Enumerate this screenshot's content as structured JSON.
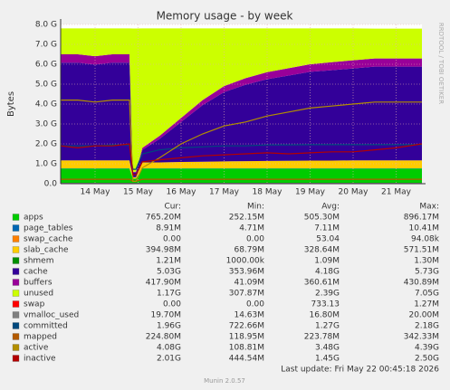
{
  "chart_data": {
    "type": "area",
    "title": "Memory usage - by week",
    "y_label": "Bytes",
    "side_text": "RRDTOOL / TOBI OETIKER",
    "x": [
      13.2,
      13.6,
      14,
      14.4,
      14.8,
      14.88,
      14.95,
      15.1,
      15.5,
      16,
      16.5,
      17,
      17.5,
      18,
      18.5,
      19,
      19.5,
      20,
      20.5,
      21,
      21.6
    ],
    "xlim": [
      13.2,
      21.6
    ],
    "xticks": [
      {
        "value": 14,
        "label": "14 May"
      },
      {
        "value": 15,
        "label": "15 May"
      },
      {
        "value": 16,
        "label": "16 May"
      },
      {
        "value": 17,
        "label": "17 May"
      },
      {
        "value": 18,
        "label": "18 May"
      },
      {
        "value": 19,
        "label": "19 May"
      },
      {
        "value": 20,
        "label": "20 May"
      },
      {
        "value": 21,
        "label": "21 May"
      }
    ],
    "ylim": [
      0,
      8
    ],
    "yticks": [
      {
        "value": 0,
        "label": "0.0"
      },
      {
        "value": 1,
        "label": "1.0 G"
      },
      {
        "value": 2,
        "label": "2.0 G"
      },
      {
        "value": 3,
        "label": "3.0 G"
      },
      {
        "value": 4,
        "label": "4.0 G"
      },
      {
        "value": 5,
        "label": "5.0 G"
      },
      {
        "value": 6,
        "label": "6.0 G"
      },
      {
        "value": 7,
        "label": "7.0 G"
      },
      {
        "value": 8,
        "label": "8.0 G"
      }
    ],
    "grid": true,
    "stat_headers": [
      "Cur:",
      "Min:",
      "Avg:",
      "Max:"
    ],
    "series": [
      {
        "name": "apps",
        "color": "#00cc00",
        "draw": "area",
        "values": [
          0.76,
          0.76,
          0.76,
          0.76,
          0.76,
          0.25,
          0.25,
          0.76,
          0.76,
          0.76,
          0.76,
          0.76,
          0.76,
          0.76,
          0.76,
          0.76,
          0.76,
          0.76,
          0.76,
          0.76,
          0.76
        ],
        "stats": [
          "765.20M",
          "252.15M",
          "505.30M",
          "896.17M"
        ]
      },
      {
        "name": "page_tables",
        "color": "#0066b3",
        "draw": "area",
        "values": [
          0.01,
          0.01,
          0.01,
          0.01,
          0.01,
          0.005,
          0.005,
          0.01,
          0.01,
          0.01,
          0.01,
          0.01,
          0.01,
          0.01,
          0.01,
          0.01,
          0.01,
          0.01,
          0.01,
          0.01,
          0.01
        ],
        "stats": [
          "8.91M",
          "4.71M",
          "7.11M",
          "10.41M"
        ]
      },
      {
        "name": "swap_cache",
        "color": "#ff8000",
        "draw": "area",
        "values": [
          0,
          0,
          0,
          0,
          0,
          0,
          0,
          0,
          0,
          0,
          0,
          0,
          0,
          0,
          0,
          0,
          0,
          0,
          0,
          0,
          0
        ],
        "stats": [
          "0.00",
          "0.00",
          "53.04",
          "94.08k"
        ]
      },
      {
        "name": "slab_cache",
        "color": "#ffcc00",
        "draw": "area",
        "values": [
          0.4,
          0.4,
          0.4,
          0.4,
          0.4,
          0.07,
          0.07,
          0.3,
          0.3,
          0.32,
          0.33,
          0.35,
          0.36,
          0.37,
          0.38,
          0.39,
          0.39,
          0.4,
          0.4,
          0.4,
          0.4
        ],
        "stats": [
          "394.98M",
          "68.79M",
          "328.64M",
          "571.51M"
        ]
      },
      {
        "name": "shmem",
        "color": "#008f00",
        "draw": "area",
        "values": [
          0.001,
          0.001,
          0.001,
          0.001,
          0.001,
          0.001,
          0.001,
          0.001,
          0.001,
          0.001,
          0.001,
          0.001,
          0.001,
          0.001,
          0.001,
          0.001,
          0.001,
          0.001,
          0.001,
          0.001,
          0.001
        ],
        "stats": [
          "1.21M",
          "1000.00k",
          "1.09M",
          "1.30M"
        ]
      },
      {
        "name": "cache",
        "color": "#330099",
        "draw": "area",
        "values": [
          4.91,
          4.91,
          4.81,
          4.91,
          4.91,
          0.23,
          0.23,
          0.63,
          1.18,
          2.01,
          2.85,
          3.48,
          3.84,
          4.11,
          4.28,
          4.46,
          4.54,
          4.62,
          4.71,
          4.71,
          4.71
        ],
        "stats": [
          "5.03G",
          "353.96M",
          "4.18G",
          "5.73G"
        ]
      },
      {
        "name": "buffers",
        "color": "#990099",
        "draw": "area",
        "values": [
          0.42,
          0.42,
          0.42,
          0.42,
          0.42,
          0.04,
          0.04,
          0.1,
          0.15,
          0.2,
          0.25,
          0.3,
          0.33,
          0.35,
          0.37,
          0.38,
          0.4,
          0.41,
          0.41,
          0.41,
          0.41
        ],
        "stats": [
          "417.90M",
          "41.09M",
          "360.61M",
          "430.89M"
        ]
      },
      {
        "name": "unused",
        "color": "#ccff00",
        "draw": "area",
        "values": [
          1.3,
          1.3,
          1.4,
          1.3,
          1.3,
          7.2,
          7.2,
          6.0,
          5.4,
          4.5,
          3.6,
          2.9,
          2.5,
          2.2,
          2.0,
          1.8,
          1.7,
          1.6,
          1.5,
          1.5,
          1.5
        ],
        "stats": [
          "1.17G",
          "307.87M",
          "2.39G",
          "7.05G"
        ]
      },
      {
        "name": "swap",
        "color": "#ff0000",
        "draw": "area",
        "values": [
          0,
          0,
          0,
          0,
          0,
          0,
          0,
          0,
          0,
          0,
          0,
          0,
          0,
          0,
          0,
          0,
          0,
          0,
          0,
          0,
          0
        ],
        "stats": [
          "0.00",
          "0.00",
          "733.13",
          "1.27M"
        ]
      },
      {
        "name": "vmalloc_used",
        "color": "#808080",
        "draw": "line",
        "values": [
          0.02,
          0.02,
          0.02,
          0.02,
          0.02,
          0.015,
          0.015,
          0.02,
          0.02,
          0.02,
          0.02,
          0.02,
          0.02,
          0.02,
          0.02,
          0.02,
          0.02,
          0.02,
          0.02,
          0.02,
          0.02
        ],
        "stats": [
          "19.70M",
          "14.63M",
          "16.80M",
          "20.00M"
        ]
      },
      {
        "name": "committed",
        "color": "#00487d",
        "draw": "line",
        "values": [
          1.9,
          1.9,
          1.9,
          1.95,
          1.95,
          0.72,
          0.72,
          1.5,
          1.7,
          1.8,
          1.85,
          1.9,
          1.9,
          1.95,
          1.95,
          1.96,
          1.96,
          1.96,
          1.96,
          1.96,
          1.96
        ],
        "stats": [
          "1.96G",
          "722.66M",
          "1.27G",
          "2.18G"
        ]
      },
      {
        "name": "mapped",
        "color": "#b35a00",
        "draw": "line",
        "values": [
          0.22,
          0.22,
          0.22,
          0.22,
          0.22,
          0.12,
          0.12,
          0.22,
          0.22,
          0.22,
          0.22,
          0.22,
          0.22,
          0.22,
          0.22,
          0.22,
          0.22,
          0.22,
          0.22,
          0.22,
          0.22
        ],
        "stats": [
          "224.80M",
          "118.95M",
          "223.78M",
          "342.33M"
        ]
      },
      {
        "name": "active",
        "color": "#b38f00",
        "draw": "line",
        "values": [
          4.2,
          4.2,
          4.1,
          4.2,
          4.2,
          0.11,
          0.11,
          0.8,
          1.3,
          2.0,
          2.5,
          2.9,
          3.1,
          3.4,
          3.6,
          3.8,
          3.9,
          4.0,
          4.1,
          4.1,
          4.1
        ],
        "stats": [
          "4.08G",
          "108.81M",
          "3.48G",
          "4.39G"
        ]
      },
      {
        "name": "inactive",
        "color": "#b30000",
        "draw": "line",
        "values": [
          1.9,
          1.8,
          1.9,
          1.9,
          2.0,
          0.45,
          0.45,
          1.1,
          1.2,
          1.3,
          1.4,
          1.45,
          1.5,
          1.55,
          1.5,
          1.55,
          1.6,
          1.6,
          1.7,
          1.8,
          2.0
        ],
        "stats": [
          "2.01G",
          "444.54M",
          "1.45G",
          "2.50G"
        ]
      }
    ],
    "last_update": "Last update: Fri May 22 00:45:18 2026",
    "footer": "Munin 2.0.57"
  }
}
